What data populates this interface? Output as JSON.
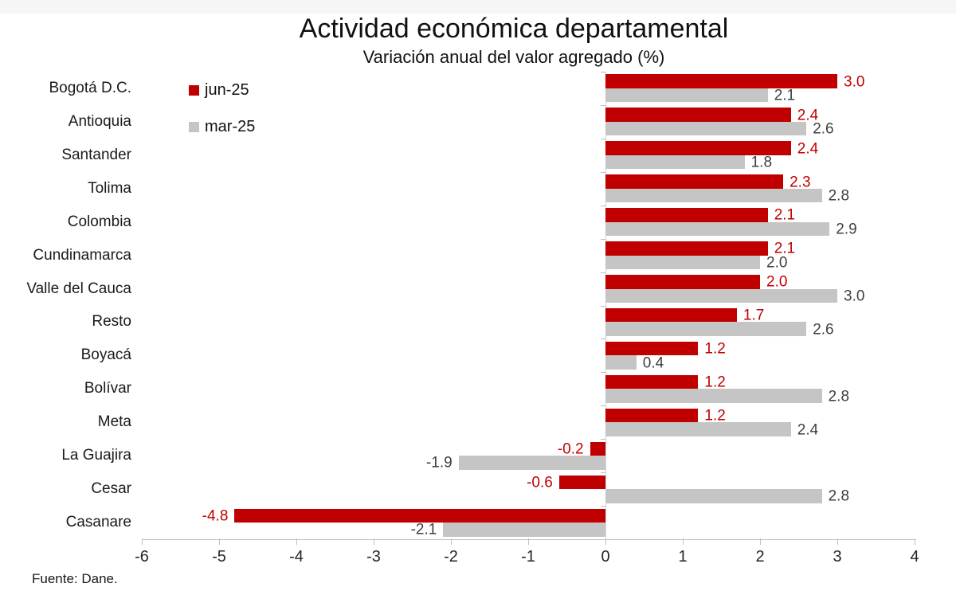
{
  "header": {
    "title": "Actividad económica departamental",
    "subtitle": "Variación anual del valor agregado (%)"
  },
  "legend": [
    {
      "label": "jun-25",
      "color": "#C00000"
    },
    {
      "label": "mar-25",
      "color": "#C5C5C5"
    }
  ],
  "footer": {
    "source": "Fuente: Dane."
  },
  "colors": {
    "series_jun25": "#C00000",
    "series_mar25": "#C5C5C5",
    "label_jun25": "#C00000",
    "label_mar25": "#3f3f3f",
    "axis": "#bfbfbf"
  },
  "chart_data": {
    "type": "bar",
    "orientation": "horizontal",
    "title": "Actividad económica departamental",
    "subtitle": "Variación anual del valor agregado (%)",
    "categories": [
      "Bogotá D.C.",
      "Antioquia",
      "Santander",
      "Tolima",
      "Colombia",
      "Cundinamarca",
      "Valle del Cauca",
      "Resto",
      "Boyacá",
      "Bolívar",
      "Meta",
      "La Guajira",
      "Cesar",
      "Casanare"
    ],
    "series": [
      {
        "name": "jun-25",
        "color": "#C00000",
        "values": [
          3.0,
          2.4,
          2.4,
          2.3,
          2.1,
          2.1,
          2.0,
          1.7,
          1.2,
          1.2,
          1.2,
          -0.2,
          -0.6,
          -4.8
        ]
      },
      {
        "name": "mar-25",
        "color": "#C5C5C5",
        "values": [
          2.1,
          2.6,
          1.8,
          2.8,
          2.9,
          2.0,
          3.0,
          2.6,
          0.4,
          2.8,
          2.4,
          -1.9,
          2.8,
          -2.1
        ]
      }
    ],
    "value_labels": true,
    "xlabel": "",
    "ylabel": "",
    "xlim": [
      -6,
      4
    ],
    "xticks": [
      -6,
      -5,
      -4,
      -3,
      -2,
      -1,
      0,
      1,
      2,
      3,
      4
    ],
    "grid": false,
    "legend_position": "top-left"
  }
}
